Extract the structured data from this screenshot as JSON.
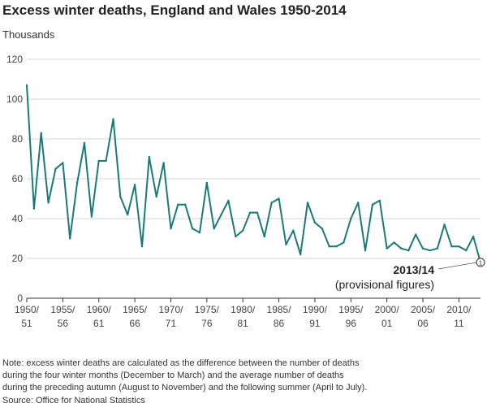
{
  "header": {
    "title": "Excess winter deaths, England and Wales 1950-2014",
    "unit_label": "Thousands"
  },
  "chart_data": {
    "type": "line",
    "title": "Excess winter deaths, England and Wales 1950-2014",
    "ylabel": "Thousands",
    "xlabel": "",
    "ylim": [
      0,
      120
    ],
    "yticks": [
      0,
      20,
      40,
      60,
      80,
      100,
      120
    ],
    "grid": "horizontal",
    "line_color": "#1a7a77",
    "x_tick_labels": [
      {
        "line1": "1950/",
        "line2": "51"
      },
      {
        "line1": "1955/",
        "line2": "56"
      },
      {
        "line1": "1960/",
        "line2": "61"
      },
      {
        "line1": "1965/",
        "line2": "66"
      },
      {
        "line1": "1970/",
        "line2": "71"
      },
      {
        "line1": "1975/",
        "line2": "76"
      },
      {
        "line1": "1980/",
        "line2": "81"
      },
      {
        "line1": "1985/",
        "line2": "86"
      },
      {
        "line1": "1990/",
        "line2": "91"
      },
      {
        "line1": "1995/",
        "line2": "96"
      },
      {
        "line1": "2000/",
        "line2": "01"
      },
      {
        "line1": "2005/",
        "line2": "06"
      },
      {
        "line1": "2010/",
        "line2": "11"
      }
    ],
    "x": [
      "1950/51",
      "1951/52",
      "1952/53",
      "1953/54",
      "1954/55",
      "1955/56",
      "1956/57",
      "1957/58",
      "1958/59",
      "1959/60",
      "1960/61",
      "1961/62",
      "1962/63",
      "1963/64",
      "1964/65",
      "1965/66",
      "1966/67",
      "1967/68",
      "1968/69",
      "1969/70",
      "1970/71",
      "1971/72",
      "1972/73",
      "1973/74",
      "1974/75",
      "1975/76",
      "1976/77",
      "1977/78",
      "1978/79",
      "1979/80",
      "1980/81",
      "1981/82",
      "1982/83",
      "1983/84",
      "1984/85",
      "1985/86",
      "1986/87",
      "1987/88",
      "1988/89",
      "1989/90",
      "1990/91",
      "1991/92",
      "1992/93",
      "1993/94",
      "1994/95",
      "1995/96",
      "1996/97",
      "1997/98",
      "1998/99",
      "1999/00",
      "2000/01",
      "2001/02",
      "2002/03",
      "2003/04",
      "2004/05",
      "2005/06",
      "2006/07",
      "2007/08",
      "2008/09",
      "2009/10",
      "2010/11",
      "2011/12",
      "2012/13",
      "2013/14"
    ],
    "values": [
      107,
      45,
      83,
      48,
      65,
      68,
      30,
      58,
      78,
      41,
      69,
      69,
      90,
      51,
      42,
      57,
      26,
      71,
      51,
      68,
      35,
      47,
      47,
      35,
      33,
      58,
      35,
      42,
      49,
      31,
      34,
      43,
      43,
      31,
      48,
      50,
      27,
      34,
      22,
      48,
      38,
      35,
      26,
      26,
      28,
      40,
      48,
      24,
      47,
      49,
      25,
      28,
      25,
      24,
      32,
      25,
      24,
      25,
      37,
      26,
      26,
      24,
      31,
      18
    ],
    "annotation": {
      "x": "2013/14",
      "marker": "1",
      "label_bold": "2013/14",
      "label": "(provisional figures)"
    }
  },
  "footer": {
    "note_lines": [
      "Note: excess winter deaths are calculated as the difference between the number of deaths",
      "during the four winter months (December to March) and the average number of deaths",
      "during the preceding autumn (August to November) and the following summer (April to July)."
    ],
    "source": "Source: Office for National Statistics"
  }
}
